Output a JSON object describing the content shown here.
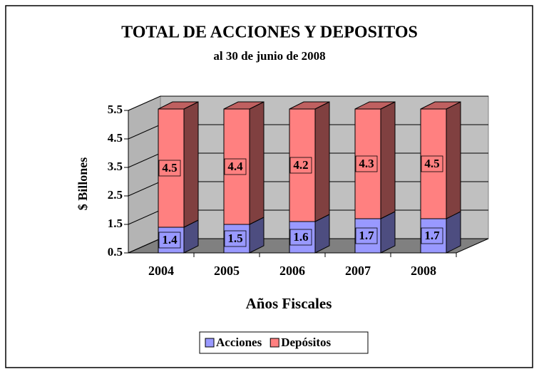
{
  "chart_data": {
    "type": "bar3d_stacked",
    "title": "TOTAL DE ACCIONES Y DEPOSITOS",
    "subtitle": "al 30 de junio de 2008",
    "x_label": "Años Fiscales",
    "y_label": "$ Billones",
    "categories": [
      "2004",
      "2005",
      "2006",
      "2007",
      "2008"
    ],
    "series": [
      {
        "name": "Acciones",
        "color": "#9999ff",
        "values": [
          1.4,
          1.5,
          1.6,
          1.7,
          1.7
        ]
      },
      {
        "name": "Depósitos",
        "color": "#ff8080",
        "values": [
          4.5,
          4.4,
          4.2,
          4.3,
          4.5
        ]
      }
    ],
    "ylim": [
      0.5,
      5.5
    ],
    "yticks": [
      0.5,
      1.5,
      2.5,
      3.5,
      4.5,
      5.5
    ],
    "grid": true,
    "legend": "bottom"
  }
}
